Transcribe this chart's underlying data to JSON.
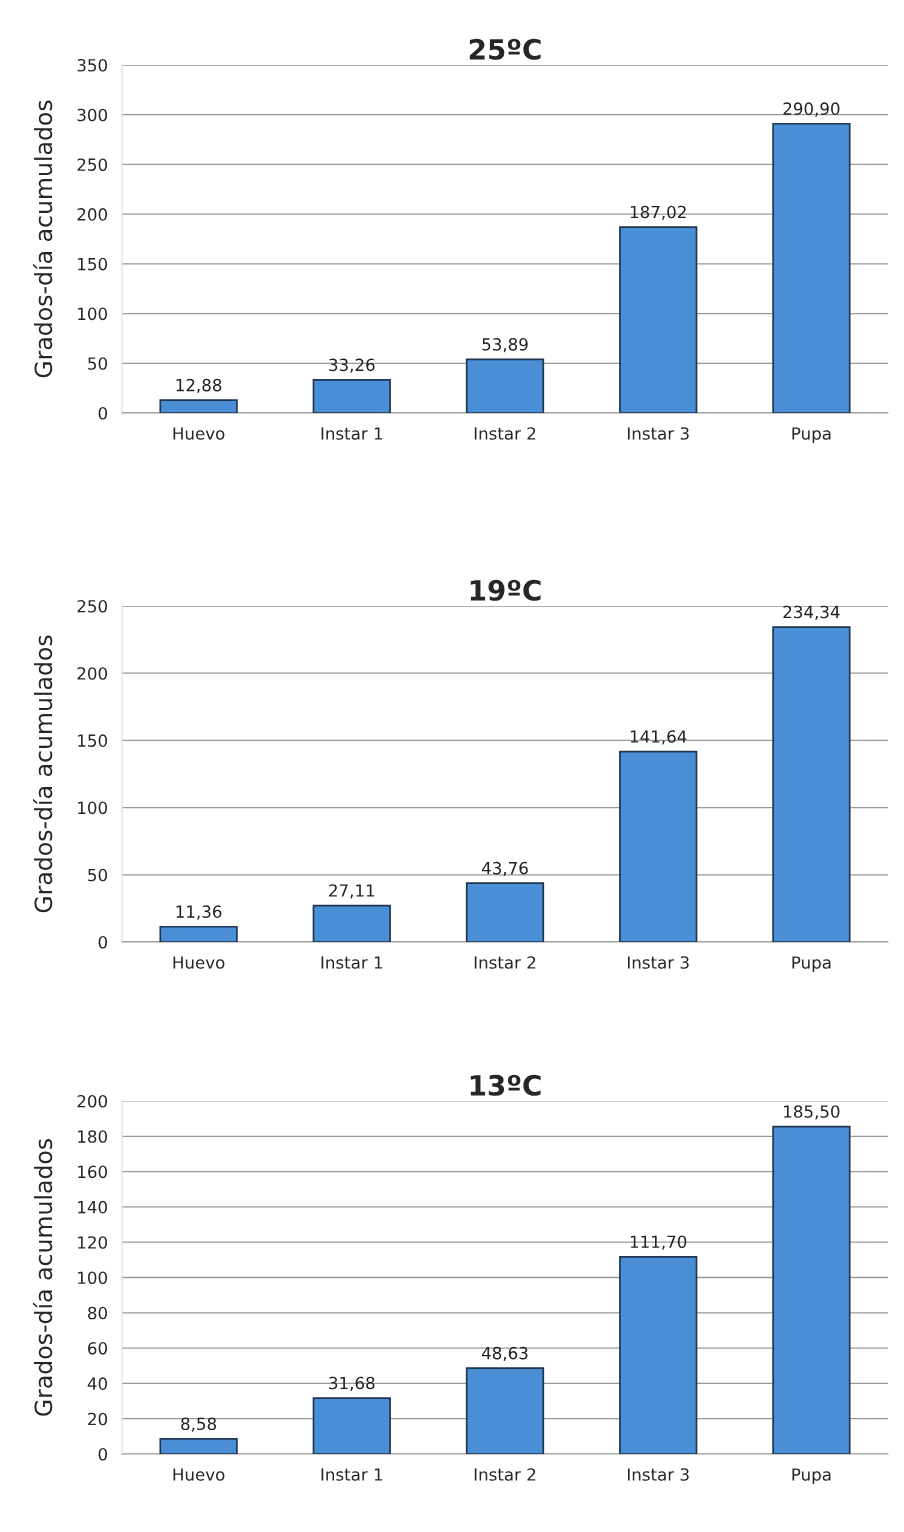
{
  "chart_data": [
    {
      "type": "bar",
      "title": "25ºC",
      "ylabel": "Grados-día acumulados",
      "categories": [
        "Huevo",
        "Instar 1",
        "Instar 2",
        "Instar 3",
        "Pupa"
      ],
      "values": [
        12.88,
        33.26,
        53.89,
        187.02,
        290.9
      ],
      "value_labels": [
        "12,88",
        "33,26",
        "53,89",
        "187,02",
        "290,90"
      ],
      "color": "#4a8fd6",
      "ylim": [
        0,
        350
      ],
      "yticks": [
        0,
        50,
        100,
        150,
        200,
        250,
        300,
        350
      ],
      "grid": "y",
      "legend": false
    },
    {
      "type": "bar",
      "title": "19ºC",
      "ylabel": "Grados-día acumulados",
      "categories": [
        "Huevo",
        "Instar 1",
        "Instar 2",
        "Instar 3",
        "Pupa"
      ],
      "values": [
        11.36,
        27.11,
        43.76,
        141.64,
        234.34
      ],
      "value_labels": [
        "11,36",
        "27,11",
        "43,76",
        "141,64",
        "234,34"
      ],
      "color": "#4a8fd6",
      "ylim": [
        0,
        250
      ],
      "yticks": [
        0,
        50,
        100,
        150,
        200,
        250
      ],
      "grid": "y",
      "legend": false
    },
    {
      "type": "bar",
      "title": "13ºC",
      "ylabel": "Grados-día acumulados",
      "categories": [
        "Huevo",
        "Instar 1",
        "Instar 2",
        "Instar 3",
        "Pupa"
      ],
      "values": [
        8.58,
        31.68,
        48.63,
        111.7,
        185.5
      ],
      "value_labels": [
        "8,58",
        "31,68",
        "48,63",
        "111,70",
        "185,50"
      ],
      "color": "#4a8fd6",
      "ylim": [
        0,
        200
      ],
      "yticks": [
        0,
        20,
        40,
        60,
        80,
        100,
        120,
        140,
        160,
        180,
        200
      ],
      "grid": "y",
      "legend": false
    }
  ]
}
